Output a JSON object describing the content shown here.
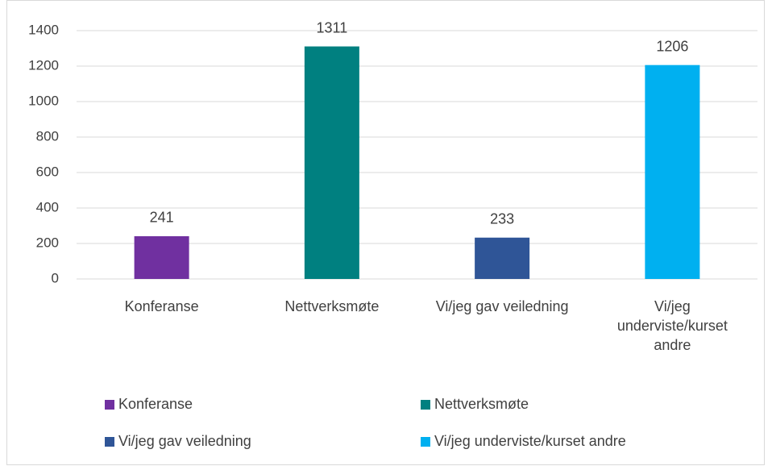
{
  "chart_data": {
    "type": "bar",
    "categories": [
      "Konferanse",
      "Nettverksmøte",
      "Vi/jeg gav veiledning",
      "Vi/jeg underviste/kurset andre"
    ],
    "values": [
      241,
      1311,
      233,
      1206
    ],
    "colors": [
      "#7030a0",
      "#008080",
      "#2f5597",
      "#00b0f0"
    ],
    "ylim": [
      0,
      1400
    ],
    "yticks": [
      0,
      200,
      400,
      600,
      800,
      1000,
      1200,
      1400
    ],
    "grid": true,
    "legend": "bottom"
  }
}
